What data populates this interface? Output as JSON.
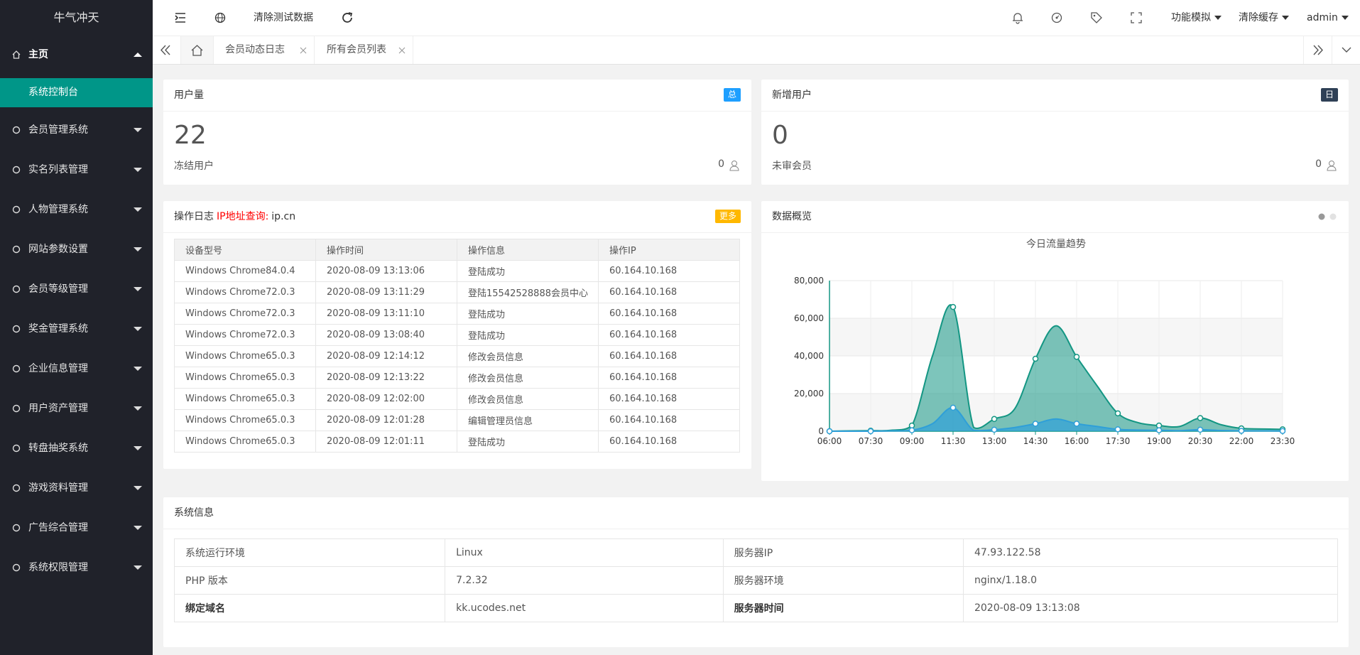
{
  "sidebar": {
    "brand": "牛气冲天",
    "menu": [
      {
        "label": "主页",
        "children": [
          "系统控制台"
        ]
      },
      {
        "label": "会员管理系统"
      },
      {
        "label": "实名列表管理"
      },
      {
        "label": "人物管理系统"
      },
      {
        "label": "网站参数设置"
      },
      {
        "label": "会员等级管理"
      },
      {
        "label": "奖金管理系统"
      },
      {
        "label": "企业信息管理"
      },
      {
        "label": "用户资产管理"
      },
      {
        "label": "转盘抽奖系统"
      },
      {
        "label": "游戏资料管理"
      },
      {
        "label": "广告综合管理"
      },
      {
        "label": "系统权限管理"
      }
    ]
  },
  "topbar": {
    "action": "清除测试数据",
    "menus": [
      "功能模拟",
      "清除缓存",
      "admin"
    ]
  },
  "tabs": [
    "会员动态日志",
    "所有会员列表"
  ],
  "stats": [
    {
      "title": "用户量",
      "badge": "总",
      "value": 22,
      "sub": "冻结用户",
      "sub_value": 0
    },
    {
      "title": "新增用户",
      "badge": "日",
      "value": 0,
      "sub": "未审会员",
      "sub_value": 0
    }
  ],
  "log": {
    "title": "操作日志",
    "link_label": "IP地址查询:",
    "link": "ip.cn",
    "badge": "更多",
    "columns": [
      "设备型号",
      "操作时间",
      "操作信息",
      "操作IP"
    ],
    "rows": [
      [
        "Windows Chrome84.0.4",
        "2020-08-09 13:13:06",
        "登陆成功",
        "60.164.10.168"
      ],
      [
        "Windows Chrome72.0.3",
        "2020-08-09 13:11:29",
        "登陆15542528888会员中心",
        "60.164.10.168"
      ],
      [
        "Windows Chrome72.0.3",
        "2020-08-09 13:11:10",
        "登陆成功",
        "60.164.10.168"
      ],
      [
        "Windows Chrome72.0.3",
        "2020-08-09 13:08:40",
        "登陆成功",
        "60.164.10.168"
      ],
      [
        "Windows Chrome65.0.3",
        "2020-08-09 12:14:12",
        "修改会员信息",
        "60.164.10.168"
      ],
      [
        "Windows Chrome65.0.3",
        "2020-08-09 12:13:22",
        "修改会员信息",
        "60.164.10.168"
      ],
      [
        "Windows Chrome65.0.3",
        "2020-08-09 12:02:00",
        "修改会员信息",
        "60.164.10.168"
      ],
      [
        "Windows Chrome65.0.3",
        "2020-08-09 12:01:28",
        "编辑管理员信息",
        "60.164.10.168"
      ],
      [
        "Windows Chrome65.0.3",
        "2020-08-09 12:01:11",
        "登陆成功",
        "60.164.10.168"
      ]
    ]
  },
  "overview": {
    "title": "数据概览"
  },
  "chart_data": {
    "type": "area",
    "title": "今日流量趋势",
    "categories": [
      "06:00",
      null,
      "07:30",
      null,
      "09:00",
      null,
      "11:30",
      null,
      "13:00",
      null,
      "14:30",
      null,
      "16:00",
      null,
      "17:30",
      null,
      "19:00",
      null,
      "20:30",
      null,
      "22:00",
      null,
      "23:30"
    ],
    "series": [
      {
        "color": "#139683",
        "values": [
          0,
          200,
          300,
          500,
          3000,
          40000,
          66000,
          2000,
          6500,
          12000,
          38500,
          56000,
          39500,
          24000,
          9500,
          4500,
          3000,
          2500,
          7000,
          3500,
          1500,
          1200,
          1000
        ]
      },
      {
        "color": "#2f9fd8",
        "values": [
          0,
          0,
          0,
          200,
          500,
          4000,
          12500,
          500,
          800,
          2000,
          4000,
          6500,
          4000,
          2500,
          1000,
          600,
          500,
          300,
          800,
          400,
          200,
          200,
          100
        ]
      }
    ],
    "ylim": [
      0,
      80000
    ],
    "yticks": [
      0,
      {
        "value": 20000,
        "label": "20,000"
      },
      {
        "value": 40000,
        "label": "40,000"
      },
      {
        "value": 60000,
        "label": "60,000"
      },
      {
        "value": 80000,
        "label": "80,000"
      }
    ],
    "grid": true
  },
  "system": {
    "title": "系统信息",
    "rows": [
      [
        "系统运行环境",
        "Linux",
        "服务器IP",
        "47.93.122.58"
      ],
      [
        "PHP 版本",
        "7.2.32",
        "服务器环境",
        "nginx/1.18.0"
      ],
      [
        "绑定域名",
        "kk.ucodes.net",
        "服务器时间",
        "2020-08-09 13:13:08"
      ]
    ]
  }
}
